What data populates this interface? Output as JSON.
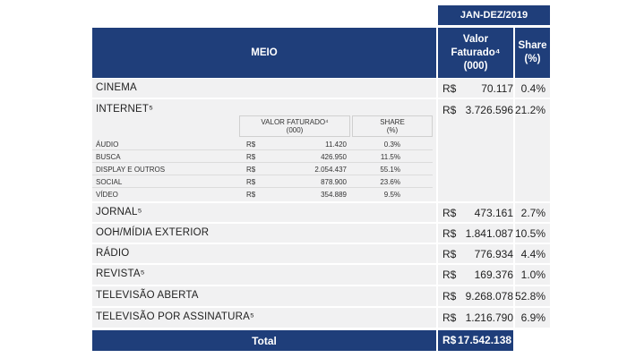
{
  "header": {
    "period": "JAN-DEZ/2019",
    "meio": "MEIO",
    "valor_line1": "Valor",
    "valor_line2": "Faturado⁴",
    "valor_line3": "(000)",
    "share_line1": "Share",
    "share_line2": "(%)"
  },
  "currency": "R$",
  "rows": [
    {
      "label": "CINEMA",
      "value": "70.117",
      "share": "0.4%"
    },
    {
      "label": "INTERNET⁵",
      "value": "3.726.596",
      "share": "21.2%"
    },
    {
      "label": "JORNAL⁵",
      "value": "473.161",
      "share": "2.7%"
    },
    {
      "label": "OOH/MÍDIA EXTERIOR",
      "value": "1.841.087",
      "share": "10.5%"
    },
    {
      "label": "RÁDIO",
      "value": "776.934",
      "share": "4.4%"
    },
    {
      "label": "REVISTA⁵",
      "value": "169.376",
      "share": "1.0%"
    },
    {
      "label": "TELEVISÃO ABERTA",
      "value": "9.268.078",
      "share": "52.8%"
    },
    {
      "label": "TELEVISÃO POR ASSINATURA⁵",
      "value": "1.216.790",
      "share": "6.9%"
    }
  ],
  "internet_sub": {
    "header_valor_line1": "VALOR FATURADO⁴",
    "header_valor_line2": "(000)",
    "header_share_line1": "SHARE",
    "header_share_line2": "(%)",
    "rows": [
      {
        "label": "ÁUDIO",
        "value": "11.420",
        "share": "0.3%"
      },
      {
        "label": "BUSCA",
        "value": "426.950",
        "share": "11.5%"
      },
      {
        "label": "DISPLAY E OUTROS",
        "value": "2.054.437",
        "share": "55.1%"
      },
      {
        "label": "SOCIAL",
        "value": "878.900",
        "share": "23.6%"
      },
      {
        "label": "VÍDEO",
        "value": "354.889",
        "share": "9.5%"
      }
    ]
  },
  "total": {
    "label": "Total",
    "value": "17.542.138"
  }
}
